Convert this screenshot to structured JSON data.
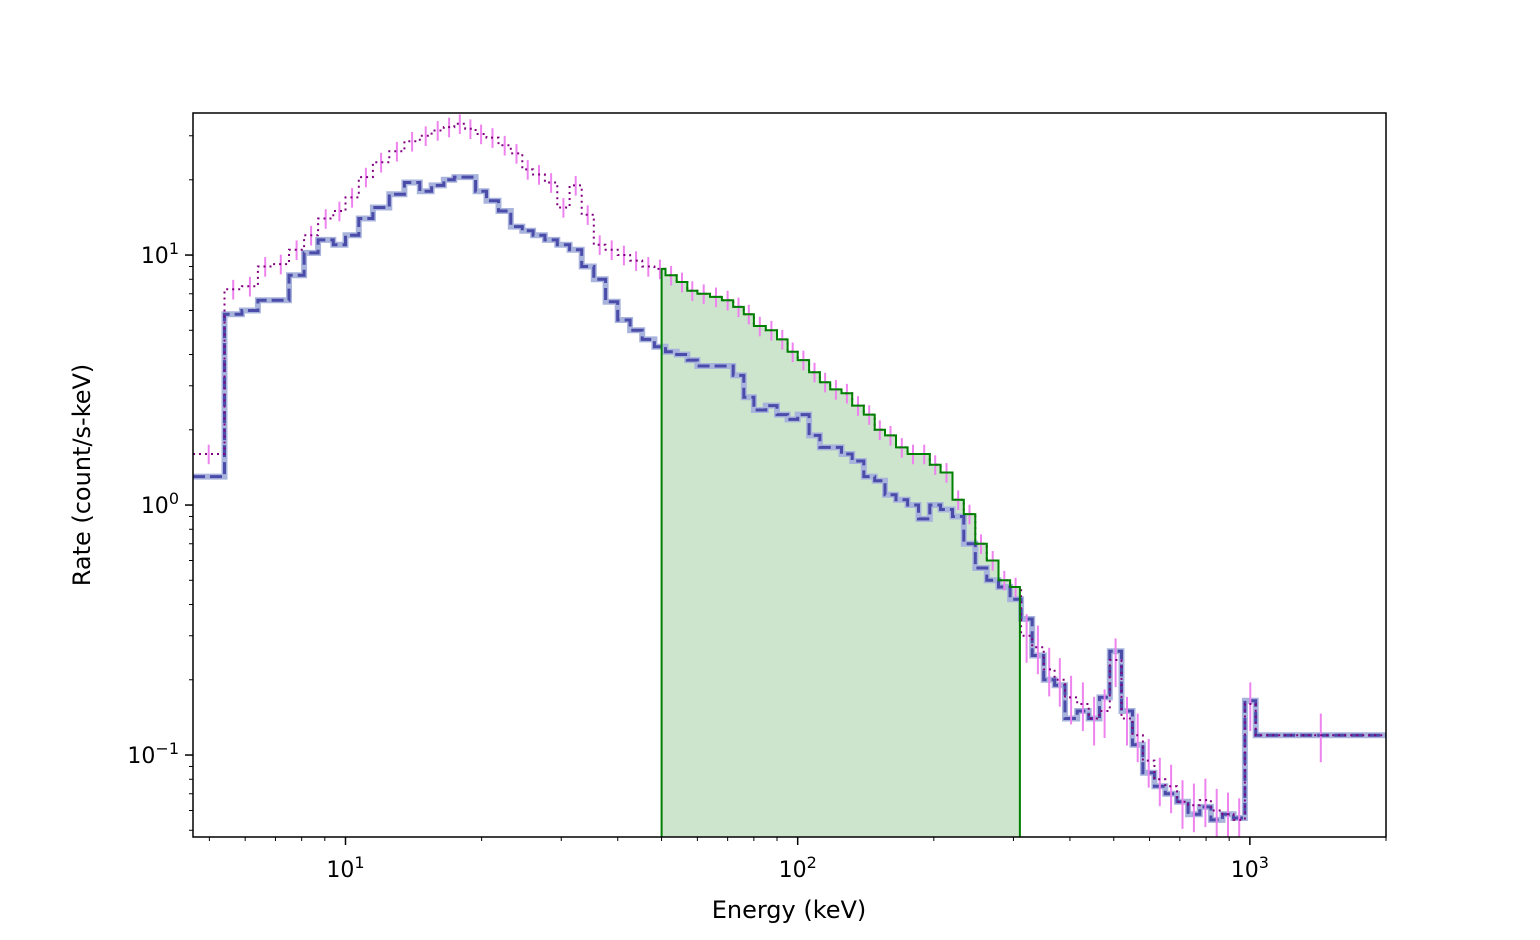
{
  "chart_data": {
    "type": "line",
    "title": "",
    "xlabel": "Energy (keV)",
    "ylabel": "Rate (count/s-keV)",
    "xscale": "log",
    "yscale": "log",
    "xlim": [
      4.6,
      2000
    ],
    "ylim": [
      0.047,
      37
    ],
    "grid": false,
    "legend": "none",
    "x_ticks": [
      {
        "value": 10,
        "base": "10",
        "exp": "1"
      },
      {
        "value": 100,
        "base": "10",
        "exp": "2"
      },
      {
        "value": 1000,
        "base": "10",
        "exp": "3"
      }
    ],
    "y_ticks": [
      {
        "value": 0.1,
        "base": "10",
        "exp": "−1"
      },
      {
        "value": 1,
        "base": "10",
        "exp": "0"
      },
      {
        "value": 10,
        "base": "10",
        "exp": "1"
      }
    ],
    "shaded_region": {
      "x_start": 50,
      "x_end": 310,
      "color": "#008000",
      "fill_color": "#cce5cc"
    },
    "colors": {
      "data": "#800080",
      "errorbars": "#ee82ee",
      "background_model": "#4b4baa",
      "background_light": "#a9b4dd",
      "selection": "#008000"
    },
    "bin_edges": [
      4.6,
      5.4,
      5.9,
      6.4,
      6.9,
      7.5,
      8.1,
      8.7,
      9.4,
      10.0,
      10.7,
      11.5,
      12.5,
      13.5,
      14.6,
      15.5,
      16.5,
      17.4,
      18.4,
      19.4,
      20.5,
      21.8,
      23.2,
      24.6,
      26.0,
      27.6,
      29.4,
      31.3,
      33.3,
      35.4,
      37.6,
      40.0,
      42.6,
      45.3,
      48.2,
      51.0,
      54.0,
      57.0,
      60.0,
      64.0,
      68.0,
      72.0,
      76.0,
      80.0,
      85.0,
      90.0,
      95.0,
      100.0,
      106.0,
      112.0,
      118.0,
      125.0,
      132.0,
      140.0,
      148.0,
      156.0,
      165.0,
      175.0,
      185.0,
      196.0,
      207.0,
      220.0,
      233.0,
      247.0,
      262.0,
      278.0,
      295.0,
      312.0,
      330.0,
      350.0,
      370.0,
      390.0,
      415.0,
      440.0,
      465.0,
      490.0,
      520.0,
      550.0,
      580.0,
      615.0,
      650.0,
      690.0,
      730.0,
      775.0,
      820.0,
      870.0,
      920.0,
      975.0,
      1030.0,
      2000.0
    ],
    "series": [
      {
        "style": "dotted",
        "rates": [
          1.6,
          7.3,
          7.5,
          9.0,
          9.2,
          10.5,
          12.0,
          14.0,
          15.0,
          17.0,
          20.5,
          23.5,
          26.0,
          28.5,
          30.0,
          31.5,
          32.5,
          33.5,
          32.0,
          30.5,
          29.5,
          27.5,
          25.5,
          22.0,
          21.0,
          19.5,
          15.5,
          19.0,
          14.5,
          11.0,
          10.5,
          10.0,
          9.5,
          9.0,
          8.8,
          8.3,
          7.8,
          7.2,
          7.0,
          6.8,
          6.6,
          6.2,
          5.8,
          5.2,
          5.0,
          4.6,
          4.1,
          3.8,
          3.4,
          3.1,
          2.9,
          2.8,
          2.5,
          2.3,
          2.0,
          1.9,
          1.7,
          1.6,
          1.6,
          1.45,
          1.35,
          1.05,
          0.92,
          0.7,
          0.6,
          0.5,
          0.47,
          0.3,
          0.27,
          0.22,
          0.2,
          0.17,
          0.16,
          0.14,
          0.15,
          0.24,
          0.14,
          0.12,
          0.095,
          0.08,
          0.075,
          0.065,
          0.063,
          0.066,
          0.06,
          0.058,
          0.055,
          0.16,
          0.12
        ]
      },
      {
        "style": "dashed",
        "rates": [
          1.3,
          5.8,
          6.0,
          6.6,
          6.6,
          8.3,
          10.2,
          11.5,
          11.0,
          12.0,
          14.0,
          15.5,
          17.5,
          19.5,
          18.0,
          19.0,
          20.0,
          20.5,
          20.5,
          18.0,
          16.5,
          15.0,
          13.0,
          12.5,
          12.0,
          11.5,
          11.0,
          10.5,
          9.0,
          8.0,
          6.5,
          5.5,
          5.0,
          4.6,
          4.3,
          4.1,
          4.0,
          3.8,
          3.6,
          3.6,
          3.6,
          3.3,
          2.7,
          2.4,
          2.5,
          2.3,
          2.2,
          2.3,
          1.9,
          1.7,
          1.7,
          1.6,
          1.5,
          1.3,
          1.25,
          1.1,
          1.05,
          1.0,
          0.88,
          1.0,
          0.96,
          0.9,
          0.7,
          0.56,
          0.5,
          0.47,
          0.42,
          0.35,
          0.25,
          0.2,
          0.19,
          0.14,
          0.15,
          0.14,
          0.17,
          0.26,
          0.15,
          0.11,
          0.085,
          0.075,
          0.07,
          0.065,
          0.058,
          0.062,
          0.055,
          0.058,
          0.056,
          0.165,
          0.12
        ]
      }
    ]
  }
}
